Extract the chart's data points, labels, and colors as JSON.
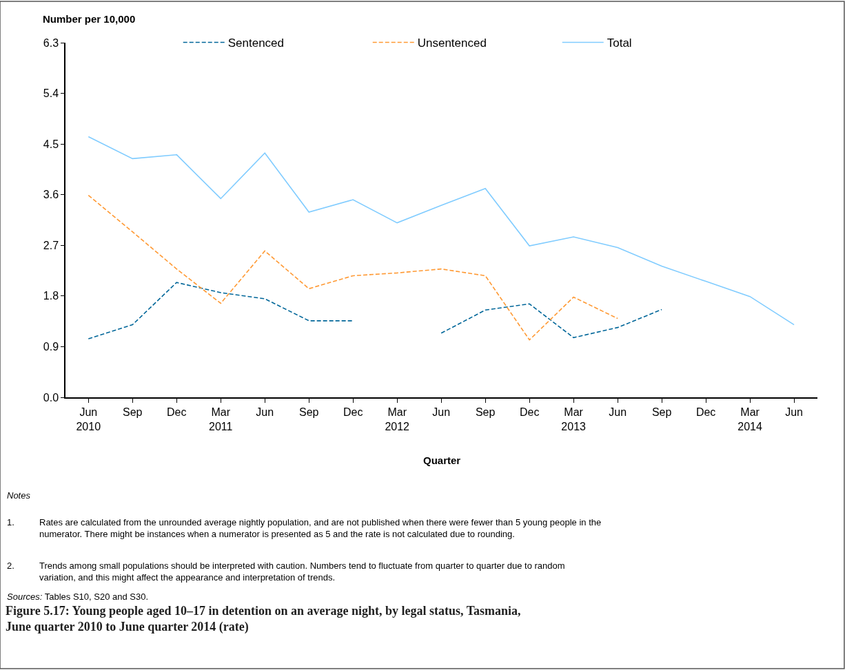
{
  "chart_data": {
    "type": "line",
    "title": "Figure 5.17: Young people aged 10–17 in detention on an average night, by legal status, Tasmania,\nJune quarter 2010 to June quarter 2014 (rate)",
    "xlabel": "Quarter",
    "ylabel": "Number per 10,000",
    "categories": [
      "Jun\n2010",
      "Sep",
      "Dec",
      "Mar\n2011",
      "Jun",
      "Sep",
      "Dec",
      "Mar\n2012",
      "Jun",
      "Sep",
      "Dec",
      "Mar\n2013",
      "Jun",
      "Sep",
      "Dec",
      "Mar\n2014",
      "Jun"
    ],
    "series": [
      {
        "name": "Sentenced",
        "color": "#006699",
        "line_style": "dashed",
        "values": [
          1.04,
          1.29,
          2.04,
          1.86,
          1.75,
          1.36,
          1.36,
          null,
          1.14,
          1.55,
          1.66,
          1.06,
          1.24,
          1.56,
          null,
          null,
          null
        ]
      },
      {
        "name": "Unsentenced",
        "color": "#ff9933",
        "line_style": "dashed",
        "values": [
          3.59,
          2.94,
          2.28,
          1.67,
          2.6,
          1.93,
          2.16,
          2.21,
          2.28,
          2.16,
          1.02,
          1.78,
          1.4,
          null,
          null,
          null,
          null
        ]
      },
      {
        "name": "Total",
        "color": "#80ccff",
        "line_style": "solid",
        "values": [
          4.63,
          4.24,
          4.31,
          3.53,
          4.34,
          3.29,
          3.51,
          3.1,
          3.41,
          3.71,
          2.69,
          2.85,
          2.66,
          2.33,
          2.06,
          1.79,
          1.29
        ]
      }
    ],
    "ylim": [
      0,
      6.3
    ],
    "yticks": [
      {
        "value": 0,
        "label": "0.0"
      },
      0.9,
      1.8,
      2.7,
      3.6,
      4.5,
      5.4,
      6.3
    ],
    "legend": "top",
    "marker": "none",
    "annotations": [
      "Notes",
      "1. Rates are calculated from the unrounded average nightly population, and are not published when there were fewer than 5 young people in the numerator. There might be instances when a numerator is presented as 5 and the rate is not calculated due to rounding.",
      "2. Trends among small populations should be interpreted with caution. Numbers tend to fluctuate from quarter to quarter due to random variation, and this might affect the appearance and interpretation of trends.",
      "Sources: Tables S10, S20 and S30."
    ]
  }
}
